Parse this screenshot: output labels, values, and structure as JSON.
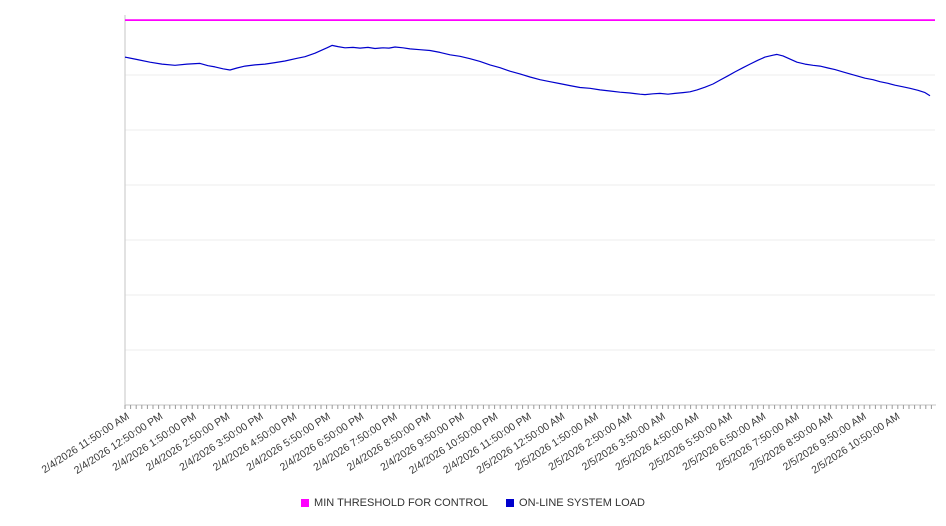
{
  "chart_data": {
    "type": "line",
    "title": "",
    "xlabel": "",
    "ylabel": "",
    "grid": "horizontal",
    "legend_position": "bottom",
    "y_axis_labels_visible": false,
    "y_units": "relative units (no y-axis tick labels shown); values are percent of plot height, 0 = bottom axis, 100 = plot top",
    "ylim": [
      0,
      100
    ],
    "categories": [
      "2/4/2026 11:50:00 AM",
      "2/4/2026 12:50:00 PM",
      "2/4/2026 1:50:00 PM",
      "2/4/2026 2:50:00 PM",
      "2/4/2026 3:50:00 PM",
      "2/4/2026 4:50:00 PM",
      "2/4/2026 5:50:00 PM",
      "2/4/2026 6:50:00 PM",
      "2/4/2026 7:50:00 PM",
      "2/4/2026 8:50:00 PM",
      "2/4/2026 9:50:00 PM",
      "2/4/2026 10:50:00 PM",
      "2/4/2026 11:50:00 PM",
      "2/5/2026 12:50:00 AM",
      "2/5/2026 1:50:00 AM",
      "2/5/2026 2:50:00 AM",
      "2/5/2026 3:50:00 AM",
      "2/5/2026 4:50:00 AM",
      "2/5/2026 5:50:00 AM",
      "2/5/2026 6:50:00 AM",
      "2/5/2026 7:50:00 AM",
      "2/5/2026 8:50:00 AM",
      "2/5/2026 9:50:00 AM",
      "2/5/2026 10:50:00 AM"
    ],
    "series": [
      {
        "name": "MIN THRESHOLD FOR CONTROL",
        "color": "#FF00FF",
        "type": "constant",
        "value": 98.7
      },
      {
        "name": "ON-LINE SYSTEM LOAD",
        "color": "#0000CD",
        "type": "line",
        "values": [
          88.9,
          87.5,
          87.5,
          85.9,
          87.4,
          88.9,
          92.1,
          91.6,
          91.7,
          90.8,
          89.0,
          86.5,
          84.0,
          82.1,
          80.9,
          79.9,
          79.8,
          81.0,
          85.1,
          89.3,
          87.4,
          86.0,
          83.3,
          81.1
        ],
        "points": [
          [
            0,
            89.2
          ],
          [
            12,
            88.6
          ],
          [
            25,
            87.9
          ],
          [
            37,
            87.4
          ],
          [
            50,
            87.1
          ],
          [
            62,
            87.4
          ],
          [
            75,
            87.6
          ],
          [
            83,
            87.0
          ],
          [
            90,
            86.7
          ],
          [
            98,
            86.2
          ],
          [
            105,
            85.9
          ],
          [
            112,
            86.4
          ],
          [
            120,
            86.9
          ],
          [
            130,
            87.2
          ],
          [
            140,
            87.4
          ],
          [
            150,
            87.8
          ],
          [
            160,
            88.2
          ],
          [
            172,
            88.9
          ],
          [
            180,
            89.3
          ],
          [
            190,
            90.2
          ],
          [
            195,
            90.8
          ],
          [
            202,
            91.6
          ],
          [
            207,
            92.2
          ],
          [
            213,
            91.9
          ],
          [
            220,
            91.6
          ],
          [
            228,
            91.7
          ],
          [
            235,
            91.5
          ],
          [
            243,
            91.7
          ],
          [
            250,
            91.4
          ],
          [
            258,
            91.6
          ],
          [
            264,
            91.5
          ],
          [
            270,
            91.8
          ],
          [
            278,
            91.6
          ],
          [
            285,
            91.3
          ],
          [
            295,
            91.1
          ],
          [
            305,
            90.9
          ],
          [
            315,
            90.4
          ],
          [
            325,
            89.8
          ],
          [
            335,
            89.4
          ],
          [
            345,
            88.8
          ],
          [
            355,
            88.1
          ],
          [
            365,
            87.2
          ],
          [
            375,
            86.5
          ],
          [
            385,
            85.6
          ],
          [
            395,
            84.9
          ],
          [
            405,
            84.1
          ],
          [
            415,
            83.4
          ],
          [
            425,
            82.9
          ],
          [
            435,
            82.4
          ],
          [
            445,
            81.9
          ],
          [
            455,
            81.4
          ],
          [
            465,
            81.2
          ],
          [
            475,
            80.8
          ],
          [
            485,
            80.5
          ],
          [
            495,
            80.2
          ],
          [
            505,
            80.0
          ],
          [
            515,
            79.7
          ],
          [
            520,
            79.6
          ],
          [
            528,
            79.8
          ],
          [
            535,
            79.9
          ],
          [
            543,
            79.7
          ],
          [
            550,
            79.9
          ],
          [
            558,
            80.1
          ],
          [
            565,
            80.3
          ],
          [
            572,
            80.8
          ],
          [
            580,
            81.5
          ],
          [
            588,
            82.3
          ],
          [
            595,
            83.3
          ],
          [
            603,
            84.4
          ],
          [
            610,
            85.4
          ],
          [
            618,
            86.5
          ],
          [
            625,
            87.4
          ],
          [
            633,
            88.4
          ],
          [
            640,
            89.2
          ],
          [
            648,
            89.7
          ],
          [
            652,
            89.9
          ],
          [
            658,
            89.5
          ],
          [
            665,
            88.7
          ],
          [
            672,
            87.9
          ],
          [
            680,
            87.4
          ],
          [
            688,
            87.1
          ],
          [
            695,
            86.9
          ],
          [
            703,
            86.4
          ],
          [
            710,
            86.0
          ],
          [
            718,
            85.4
          ],
          [
            725,
            84.9
          ],
          [
            733,
            84.3
          ],
          [
            740,
            83.8
          ],
          [
            748,
            83.4
          ],
          [
            755,
            82.9
          ],
          [
            763,
            82.5
          ],
          [
            770,
            82.0
          ],
          [
            778,
            81.6
          ],
          [
            785,
            81.2
          ],
          [
            793,
            80.7
          ],
          [
            800,
            80.1
          ],
          [
            805,
            79.3
          ]
        ]
      }
    ]
  },
  "legend": {
    "items": [
      {
        "label": "MIN THRESHOLD FOR CONTROL",
        "color": "#FF00FF"
      },
      {
        "label": "ON-LINE SYSTEM LOAD",
        "color": "#0000CD"
      }
    ]
  }
}
